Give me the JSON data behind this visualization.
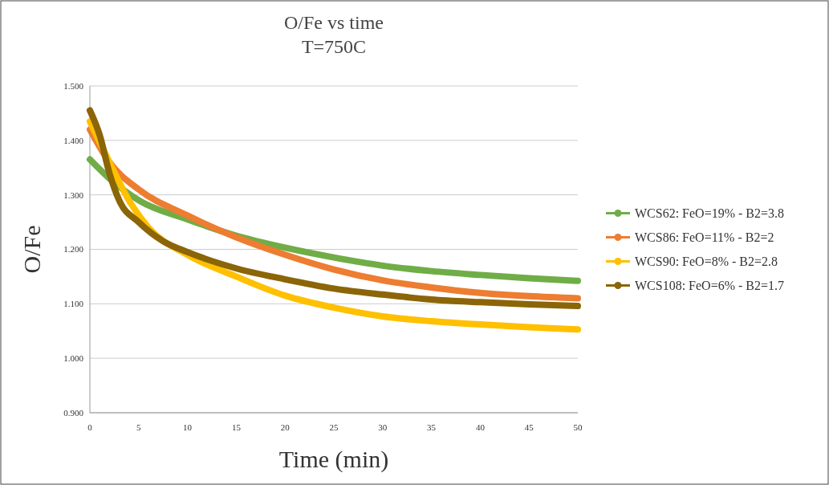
{
  "chart_data": {
    "type": "line",
    "title": "O/Fe  vs time",
    "subtitle": "T=750C",
    "xlabel": "Time (min)",
    "ylabel": "O/Fe",
    "xlim": [
      0,
      50
    ],
    "xticks": [
      0,
      5,
      10,
      15,
      20,
      25,
      30,
      35,
      40,
      45,
      50
    ],
    "ylim": [
      0.9,
      1.5
    ],
    "yticks": [
      {
        "value": 0.9,
        "label": "0.900"
      },
      {
        "value": 1.0,
        "label": "1.000"
      },
      {
        "value": 1.1,
        "label": "1.100"
      },
      {
        "value": 1.2,
        "label": "1.200"
      },
      {
        "value": 1.3,
        "label": "1.300"
      },
      {
        "value": 1.4,
        "label": "1.400"
      },
      {
        "value": 1.5,
        "label": "1.500"
      }
    ],
    "grid": "y",
    "legend": "right",
    "series": [
      {
        "name": "WCS62: FeO=19% - B2=3.8",
        "color": "#70ad47",
        "x": [
          0,
          2,
          5,
          10,
          15,
          20,
          25,
          30,
          35,
          40,
          45,
          50
        ],
        "values": [
          1.365,
          1.33,
          1.29,
          1.255,
          1.225,
          1.203,
          1.185,
          1.17,
          1.16,
          1.153,
          1.147,
          1.142
        ]
      },
      {
        "name": "WCS86: FeO=11% - B2=2",
        "color": "#ed7d31",
        "x": [
          0,
          2,
          5,
          10,
          15,
          20,
          25,
          30,
          35,
          40,
          45,
          50
        ],
        "values": [
          1.42,
          1.36,
          1.31,
          1.262,
          1.222,
          1.19,
          1.163,
          1.143,
          1.13,
          1.12,
          1.114,
          1.11
        ]
      },
      {
        "name": "WCS90: FeO=8% - B2=2.8",
        "color": "#ffc000",
        "x": [
          0,
          2,
          4,
          6,
          10,
          15,
          20,
          25,
          30,
          35,
          40,
          45,
          50
        ],
        "values": [
          1.435,
          1.36,
          1.29,
          1.24,
          1.19,
          1.15,
          1.115,
          1.093,
          1.077,
          1.068,
          1.062,
          1.057,
          1.053
        ]
      },
      {
        "name": "WCS108: FeO=6% - B2=1.7",
        "color": "#8b6508",
        "x": [
          0,
          1,
          2,
          3,
          5,
          7.5,
          10,
          15,
          20,
          25,
          30,
          35,
          40,
          45,
          50
        ],
        "values": [
          1.455,
          1.41,
          1.34,
          1.29,
          1.25,
          1.215,
          1.195,
          1.165,
          1.145,
          1.128,
          1.117,
          1.108,
          1.103,
          1.099,
          1.096
        ]
      }
    ]
  }
}
